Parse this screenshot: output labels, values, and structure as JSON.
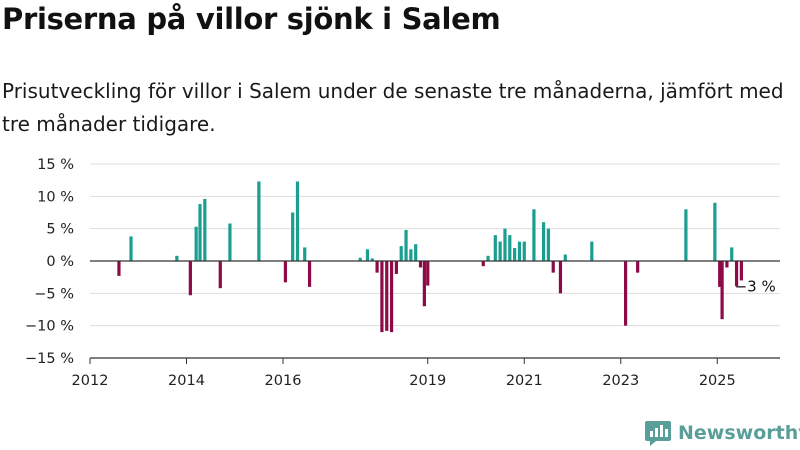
{
  "header": {
    "title": "Priserna på villor sjönk i Salem",
    "subtitle": "Prisutveckling för villor i Salem under de senaste tre månaderna, jämfört med tre månader tidigare."
  },
  "brand": {
    "name": "Newsworthy",
    "icon": "newsworthy-logo-icon",
    "color": "#5a9e9a"
  },
  "chart_data": {
    "type": "bar",
    "xlim": [
      2012.0,
      2026.3
    ],
    "ylim": [
      -15,
      15
    ],
    "y_ticks": [
      15,
      10,
      5,
      0,
      -5,
      -10,
      -15
    ],
    "y_tick_labels": [
      "15 %",
      "10 %",
      "5 %",
      "0 %",
      "−5 %",
      "−10 %",
      "−15 %"
    ],
    "x_ticks": [
      2012,
      2014,
      2016,
      2019,
      2021,
      2023,
      2025
    ],
    "x_tick_labels": [
      "2012",
      "2014",
      "2016",
      "2019",
      "2021",
      "2023",
      "2025"
    ],
    "grid": true,
    "colors": {
      "positive": "#1a9e8f",
      "negative": "#8c0a45"
    },
    "annotation": {
      "x": 2025.4,
      "y": -3,
      "label": "−3 %"
    },
    "x": [
      2012.6,
      2012.85,
      2013.8,
      2014.08,
      2014.2,
      2014.28,
      2014.38,
      2014.7,
      2014.9,
      2015.5,
      2016.05,
      2016.2,
      2016.3,
      2016.45,
      2016.55,
      2017.6,
      2017.75,
      2017.85,
      2017.95,
      2018.05,
      2018.15,
      2018.25,
      2018.35,
      2018.45,
      2018.55,
      2018.65,
      2018.75,
      2018.85,
      2018.93,
      2019.0,
      2020.15,
      2020.25,
      2020.4,
      2020.5,
      2020.6,
      2020.7,
      2020.8,
      2020.9,
      2021.0,
      2021.2,
      2021.4,
      2021.5,
      2021.6,
      2021.75,
      2021.85,
      2022.4,
      2023.1,
      2023.35,
      2024.35,
      2024.95,
      2025.05,
      2025.1,
      2025.2,
      2025.3,
      2025.4,
      2025.5
    ],
    "values": [
      -2.3,
      3.8,
      0.8,
      -5.3,
      5.3,
      8.8,
      9.6,
      -4.2,
      5.8,
      12.3,
      -3.3,
      7.5,
      12.3,
      2.1,
      -4.0,
      0.5,
      1.8,
      0.4,
      -1.8,
      -11.0,
      -10.8,
      -11.0,
      -2.0,
      2.3,
      4.8,
      1.8,
      2.6,
      -1.0,
      -7.0,
      -3.8,
      -0.8,
      0.8,
      4.0,
      3.0,
      5.0,
      4.0,
      2.0,
      3.0,
      3.0,
      8.0,
      6.0,
      5.0,
      -1.8,
      -5.0,
      1.0,
      3.0,
      -10.0,
      -1.8,
      8.0,
      9.0,
      -4.0,
      -9.0,
      -1.0,
      2.1,
      -3.9,
      -3.0
    ]
  }
}
